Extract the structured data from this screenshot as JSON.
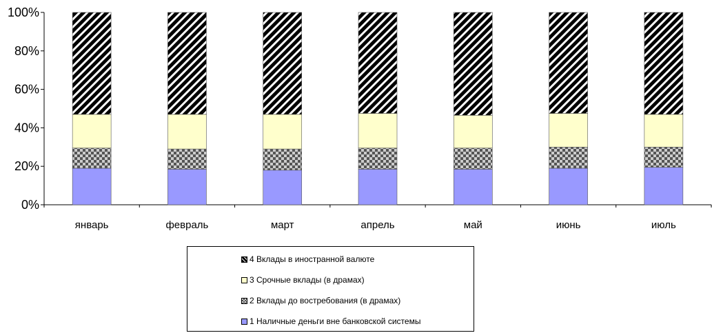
{
  "chart_data": {
    "type": "bar",
    "stacked": true,
    "normalized": true,
    "categories": [
      "январь",
      "февраль",
      "март",
      "апрель",
      "май",
      "июнь",
      "июль"
    ],
    "yticks": [
      "0%",
      "20%",
      "40%",
      "60%",
      "80%",
      "100%"
    ],
    "ylim": [
      0,
      100
    ],
    "legend_position": "bottom",
    "series": [
      {
        "name": "1 Наличные деньги вне банковской системы",
        "color": "#9999ff",
        "pattern": "solid",
        "values": [
          19,
          18.5,
          18,
          18.5,
          18.5,
          19,
          19.5
        ]
      },
      {
        "name": "2 Вклады до востребования (в драмах)",
        "color": "#666666",
        "pattern": "checker",
        "values": [
          10.5,
          10.5,
          11,
          11,
          11,
          11,
          10.5
        ]
      },
      {
        "name": "3 Срочные вклады (в драмах)",
        "color": "#ffffcc",
        "pattern": "solid",
        "values": [
          17.5,
          18,
          18,
          18,
          17,
          17.5,
          17
        ]
      },
      {
        "name": "4 Вклады в иностранной валюте",
        "color": "#000000",
        "pattern": "diagonal",
        "values": [
          53,
          53,
          53,
          52.5,
          53.5,
          52.5,
          53
        ]
      }
    ]
  },
  "legend": {
    "items": [
      {
        "label": "4 Вклады в иностранной валюте",
        "series_index": 3
      },
      {
        "label": "3 Срочные вклады (в драмах)",
        "series_index": 2
      },
      {
        "label": "2 Вклады до востребования (в драмах)",
        "series_index": 1
      },
      {
        "label": "1 Наличные деньги вне банковской системы",
        "series_index": 0
      }
    ]
  }
}
